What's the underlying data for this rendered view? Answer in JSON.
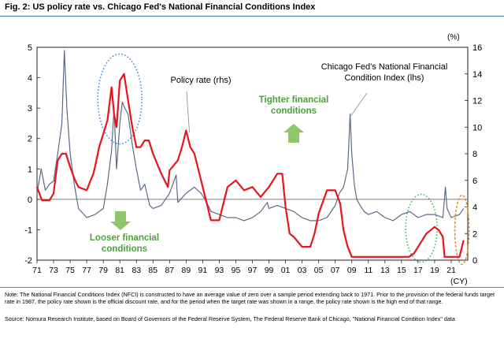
{
  "title": "Fig. 2: US policy rate vs. Chicago Fed's National Financial Conditions Index",
  "note": "Note: The National Financial Conditions Index (NFCI) is constructed to have an average value of zero over a sample period extending back to 1971. Prior to the provision of the federal funds target rate in 1987, the policy rate shown is the official discount rate, and for the period when the target rate was shown in a range, the policy rate shown is the high end of that range.",
  "source": "Source: Nomura Research Institute, based on Board of Governors of the Federal Reserve System, The Federal Reserve Bank of Chicago, \"National Financial Condition Index\" data",
  "colors": {
    "policy": "#e8141b",
    "nfci": "#5a6a86",
    "arrow": "#8fc66b",
    "arrow_text": "#4aa33a",
    "circle_blue": "#3b7fd6",
    "circle_green": "#2db34a",
    "circle_orange": "#f08a1c"
  },
  "chart_data": {
    "type": "line",
    "x_ticks": [
      "71",
      "73",
      "75",
      "77",
      "79",
      "81",
      "83",
      "85",
      "87",
      "89",
      "91",
      "93",
      "95",
      "97",
      "99",
      "01",
      "03",
      "05",
      "07",
      "09",
      "11",
      "13",
      "15",
      "17",
      "19",
      "21"
    ],
    "x_unit": "(CY)",
    "y_left_ticks": [
      "5",
      "4",
      "3",
      "2",
      "1",
      "0",
      "-1",
      "-2"
    ],
    "y_left_range": [
      -2,
      5
    ],
    "y_right_ticks": [
      "16",
      "14",
      "12",
      "10",
      "8",
      "6",
      "4",
      "2",
      "0"
    ],
    "y_right_range": [
      0,
      16
    ],
    "y_right_unit": "(%)",
    "series": [
      {
        "name": "Chicago Fed's National Financial Condition Index (lhs)",
        "axis": "left",
        "x": [
          1971.0,
          1971.5,
          1972.0,
          1972.5,
          1973.0,
          1973.5,
          1974.0,
          1974.3,
          1974.6,
          1975.0,
          1975.5,
          1976.0,
          1977.0,
          1978.0,
          1979.0,
          1979.5,
          1980.0,
          1980.3,
          1980.6,
          1981.0,
          1981.3,
          1981.6,
          1982.0,
          1982.5,
          1983.0,
          1983.5,
          1984.0,
          1984.6,
          1985.0,
          1986.0,
          1987.0,
          1987.8,
          1988.0,
          1989.0,
          1990.0,
          1990.8,
          1991.5,
          1992.0,
          1993.0,
          1994.0,
          1995.0,
          1996.0,
          1997.0,
          1998.0,
          1998.8,
          1999.0,
          2000.0,
          2001.0,
          2002.0,
          2003.0,
          2004.0,
          2005.0,
          2006.0,
          2007.0,
          2007.5,
          2008.0,
          2008.5,
          2008.8,
          2009.0,
          2009.3,
          2009.6,
          2010.0,
          2010.5,
          2011.0,
          2012.0,
          2013.0,
          2014.0,
          2015.0,
          2016.0,
          2017.0,
          2018.0,
          2019.0,
          2020.0,
          2020.3,
          2020.5,
          2021.0,
          2022.0,
          2022.5
        ],
        "y": [
          0.2,
          1.0,
          0.3,
          0.5,
          0.6,
          1.5,
          2.5,
          4.9,
          3.0,
          1.5,
          0.5,
          -0.3,
          -0.6,
          -0.5,
          -0.3,
          0.5,
          1.6,
          3.0,
          1.0,
          2.5,
          3.2,
          3.0,
          2.8,
          1.8,
          1.0,
          0.3,
          0.5,
          -0.2,
          -0.3,
          -0.2,
          0.2,
          0.8,
          -0.1,
          0.2,
          0.4,
          0.2,
          -0.1,
          -0.4,
          -0.5,
          -0.6,
          -0.6,
          -0.7,
          -0.6,
          -0.4,
          -0.1,
          -0.3,
          -0.2,
          -0.3,
          -0.4,
          -0.6,
          -0.7,
          -0.7,
          -0.6,
          -0.2,
          0.2,
          0.4,
          1.0,
          2.8,
          1.5,
          0.5,
          0.0,
          -0.2,
          -0.4,
          -0.5,
          -0.4,
          -0.6,
          -0.7,
          -0.5,
          -0.4,
          -0.6,
          -0.5,
          -0.5,
          -0.6,
          0.4,
          -0.3,
          -0.6,
          -0.5,
          -0.3
        ]
      },
      {
        "name": "Policy rate (rhs)",
        "axis": "right",
        "x": [
          1971.0,
          1971.6,
          1972.5,
          1973.0,
          1973.5,
          1974.0,
          1974.5,
          1975.0,
          1975.6,
          1976.0,
          1977.0,
          1977.8,
          1978.0,
          1978.5,
          1979.0,
          1979.5,
          1980.0,
          1980.3,
          1980.6,
          1981.0,
          1981.5,
          1982.0,
          1982.5,
          1983.0,
          1983.5,
          1984.0,
          1984.5,
          1985.0,
          1986.0,
          1986.8,
          1987.0,
          1988.0,
          1988.5,
          1989.0,
          1989.5,
          1990.0,
          1991.0,
          1992.0,
          1993.0,
          1994.0,
          1995.0,
          1996.0,
          1997.0,
          1998.0,
          1999.0,
          2000.0,
          2000.6,
          2001.0,
          2001.5,
          2002.0,
          2003.0,
          2004.0,
          2004.5,
          2005.0,
          2006.0,
          2006.5,
          2007.0,
          2007.6,
          2008.0,
          2008.5,
          2009.0,
          2010.0,
          2012.0,
          2014.0,
          2015.9,
          2016.5,
          2017.0,
          2018.0,
          2019.0,
          2019.5,
          2020.0,
          2020.2,
          2021.0,
          2022.0,
          2022.5
        ],
        "y": [
          5.5,
          4.5,
          4.5,
          5.0,
          7.5,
          8.0,
          8.0,
          7.0,
          6.0,
          5.5,
          5.25,
          6.5,
          7.0,
          8.5,
          9.5,
          10.5,
          13.0,
          11.0,
          10.0,
          13.5,
          14.0,
          12.0,
          10.0,
          8.5,
          8.5,
          9.0,
          9.0,
          8.0,
          6.5,
          5.5,
          6.75,
          7.5,
          8.5,
          9.75,
          8.5,
          8.0,
          5.5,
          3.0,
          3.0,
          5.5,
          6.0,
          5.25,
          5.5,
          4.75,
          5.5,
          6.5,
          6.5,
          4.0,
          2.0,
          1.75,
          1.0,
          1.0,
          2.0,
          3.5,
          5.25,
          5.25,
          5.25,
          4.25,
          2.25,
          1.0,
          0.25,
          0.25,
          0.25,
          0.25,
          0.25,
          0.5,
          1.0,
          2.0,
          2.5,
          2.25,
          1.75,
          0.25,
          0.25,
          0.25,
          1.5
        ]
      }
    ],
    "annotations": [
      "Chicago Fed's National Financial Condition Index (lhs)",
      "Policy rate (rhs)",
      "Tighter financial conditions",
      "Looser financial conditions"
    ],
    "grid": false,
    "legend": "none"
  }
}
